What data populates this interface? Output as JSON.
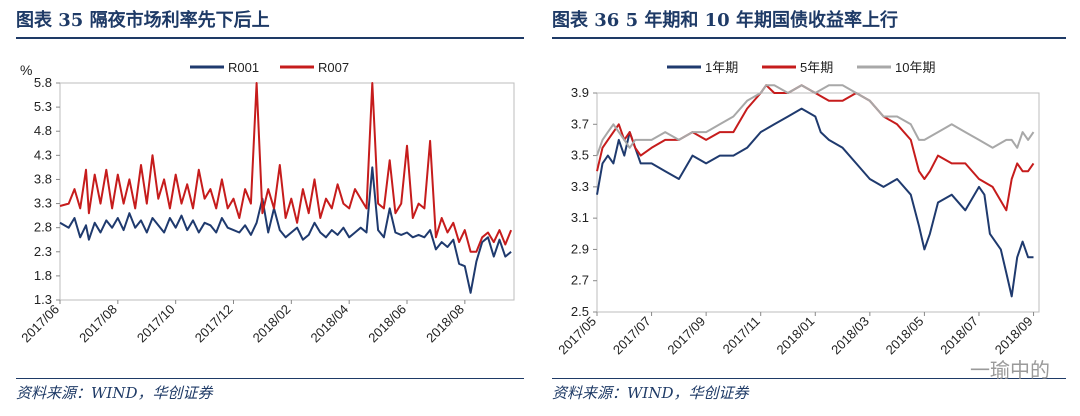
{
  "watermark": "一瑜中的",
  "chart_data": [
    {
      "type": "line",
      "title": "图表 35   隔夜市场利率先下后上",
      "source": "资料来源：WIND，华创证券",
      "ylabel": "%",
      "ylim": [
        1.3,
        5.8
      ],
      "yticks": [
        1.3,
        1.8,
        2.3,
        2.8,
        3.3,
        3.8,
        4.3,
        4.8,
        5.3,
        5.8
      ],
      "x_tick_labels": [
        "2017/06",
        "2017/08",
        "2017/10",
        "2017/12",
        "2018/02",
        "2018/04",
        "2018/06",
        "2018/08"
      ],
      "x_tick_positions": [
        0,
        2,
        4,
        6,
        8,
        10,
        12,
        14
      ],
      "xlim": [
        0,
        15.7
      ],
      "legend": "top-center",
      "series": [
        {
          "name": "R001",
          "color": "#1f3a6e",
          "x": [
            0,
            0.3,
            0.5,
            0.7,
            0.9,
            1.0,
            1.2,
            1.4,
            1.6,
            1.8,
            2.0,
            2.2,
            2.4,
            2.6,
            2.8,
            3.0,
            3.2,
            3.4,
            3.6,
            3.8,
            4.0,
            4.2,
            4.4,
            4.6,
            4.8,
            5.0,
            5.2,
            5.4,
            5.6,
            5.8,
            6.0,
            6.2,
            6.4,
            6.6,
            6.8,
            7.0,
            7.2,
            7.4,
            7.6,
            7.8,
            8.0,
            8.2,
            8.4,
            8.6,
            8.8,
            9.0,
            9.2,
            9.4,
            9.6,
            9.8,
            10.0,
            10.2,
            10.4,
            10.6,
            10.8,
            11.0,
            11.2,
            11.4,
            11.6,
            11.8,
            12.0,
            12.2,
            12.4,
            12.6,
            12.8,
            13.0,
            13.2,
            13.4,
            13.6,
            13.8,
            14.0,
            14.2,
            14.4,
            14.6,
            14.8,
            15.0,
            15.2,
            15.4,
            15.6
          ],
          "y": [
            2.9,
            2.8,
            3.0,
            2.6,
            2.85,
            2.55,
            2.9,
            2.7,
            2.95,
            2.8,
            3.0,
            2.75,
            3.1,
            2.8,
            2.95,
            2.7,
            3.0,
            2.85,
            2.7,
            3.0,
            2.8,
            3.05,
            2.75,
            2.95,
            2.7,
            2.9,
            2.85,
            2.7,
            3.0,
            2.8,
            2.75,
            2.7,
            2.85,
            2.65,
            2.9,
            3.4,
            2.7,
            3.2,
            2.75,
            2.6,
            2.7,
            2.8,
            2.55,
            2.65,
            2.9,
            2.7,
            2.6,
            2.75,
            2.65,
            2.8,
            2.6,
            2.7,
            2.8,
            2.7,
            4.05,
            2.75,
            2.6,
            3.2,
            2.7,
            2.65,
            2.7,
            2.6,
            2.65,
            2.6,
            2.75,
            2.35,
            2.5,
            2.4,
            2.55,
            2.05,
            2.0,
            1.45,
            2.1,
            2.5,
            2.6,
            2.2,
            2.55,
            2.2,
            2.3
          ]
        },
        {
          "name": "R007",
          "color": "#c61c1c",
          "x": [
            0,
            0.3,
            0.5,
            0.7,
            0.9,
            1.0,
            1.2,
            1.4,
            1.6,
            1.8,
            2.0,
            2.2,
            2.4,
            2.6,
            2.8,
            3.0,
            3.2,
            3.4,
            3.6,
            3.8,
            4.0,
            4.2,
            4.4,
            4.6,
            4.8,
            5.0,
            5.2,
            5.4,
            5.6,
            5.8,
            6.0,
            6.2,
            6.4,
            6.6,
            6.8,
            7.0,
            7.2,
            7.4,
            7.6,
            7.8,
            8.0,
            8.2,
            8.4,
            8.6,
            8.8,
            9.0,
            9.2,
            9.4,
            9.6,
            9.8,
            10.0,
            10.2,
            10.4,
            10.6,
            10.8,
            11.0,
            11.2,
            11.4,
            11.6,
            11.8,
            12.0,
            12.2,
            12.4,
            12.6,
            12.8,
            13.0,
            13.2,
            13.4,
            13.6,
            13.8,
            14.0,
            14.2,
            14.4,
            14.6,
            14.8,
            15.0,
            15.2,
            15.4,
            15.6
          ],
          "y": [
            3.25,
            3.3,
            3.6,
            3.2,
            4.0,
            3.1,
            3.9,
            3.3,
            4.0,
            3.2,
            3.9,
            3.3,
            3.8,
            3.2,
            4.1,
            3.3,
            4.3,
            3.4,
            3.8,
            3.2,
            3.9,
            3.3,
            3.7,
            3.2,
            4.0,
            3.4,
            3.6,
            3.2,
            3.8,
            3.2,
            3.4,
            3.0,
            3.6,
            3.3,
            5.8,
            3.1,
            3.6,
            3.2,
            4.1,
            3.0,
            3.4,
            2.9,
            3.6,
            3.1,
            3.8,
            3.0,
            3.4,
            3.2,
            3.7,
            3.3,
            3.2,
            3.6,
            3.4,
            3.2,
            5.8,
            3.3,
            3.2,
            4.2,
            3.1,
            3.3,
            4.5,
            3.0,
            3.3,
            3.2,
            4.6,
            2.6,
            3.0,
            2.7,
            2.9,
            2.5,
            2.75,
            2.3,
            2.3,
            2.6,
            2.7,
            2.5,
            2.75,
            2.45,
            2.75
          ]
        }
      ]
    },
    {
      "type": "line",
      "title": "图表 36   5 年期和 10 年期国债收益率上行",
      "source": "资料来源：WIND，华创证券",
      "ylim": [
        2.5,
        3.9
      ],
      "yticks": [
        2.5,
        2.7,
        2.9,
        3.1,
        3.3,
        3.5,
        3.7,
        3.9
      ],
      "x_tick_labels": [
        "2017/05",
        "2017/07",
        "2017/09",
        "2017/11",
        "2018/01",
        "2018/03",
        "2018/05",
        "2018/07",
        "2018/09"
      ],
      "x_tick_positions": [
        0,
        2,
        4,
        6,
        8,
        10,
        12,
        14,
        16
      ],
      "xlim": [
        0,
        16.2
      ],
      "legend": "top-center",
      "series": [
        {
          "name": "1年期",
          "color": "#1f3a6e",
          "x": [
            0,
            0.2,
            0.4,
            0.6,
            0.8,
            1.0,
            1.2,
            1.4,
            1.6,
            2.0,
            2.5,
            3.0,
            3.5,
            4.0,
            4.5,
            5.0,
            5.5,
            6.0,
            6.5,
            7.0,
            7.5,
            8.0,
            8.2,
            8.5,
            9.0,
            9.5,
            10.0,
            10.5,
            11.0,
            11.5,
            11.8,
            12.0,
            12.2,
            12.5,
            13.0,
            13.5,
            14.0,
            14.2,
            14.4,
            14.6,
            14.8,
            15.0,
            15.2,
            15.4,
            15.6,
            15.8,
            16.0
          ],
          "y": [
            3.25,
            3.45,
            3.5,
            3.45,
            3.6,
            3.5,
            3.65,
            3.55,
            3.45,
            3.45,
            3.4,
            3.35,
            3.5,
            3.45,
            3.5,
            3.5,
            3.55,
            3.65,
            3.7,
            3.75,
            3.8,
            3.75,
            3.65,
            3.6,
            3.55,
            3.45,
            3.35,
            3.3,
            3.35,
            3.25,
            3.05,
            2.9,
            3.0,
            3.2,
            3.25,
            3.15,
            3.3,
            3.25,
            3.0,
            2.95,
            2.9,
            2.75,
            2.6,
            2.85,
            2.95,
            2.85,
            2.85
          ]
        },
        {
          "name": "5年期",
          "color": "#c61c1c",
          "x": [
            0,
            0.2,
            0.4,
            0.6,
            0.8,
            1.0,
            1.2,
            1.4,
            1.6,
            2.0,
            2.5,
            3.0,
            3.5,
            4.0,
            4.5,
            5.0,
            5.5,
            6.0,
            6.2,
            6.5,
            7.0,
            7.5,
            8.0,
            8.5,
            9.0,
            9.5,
            10.0,
            10.5,
            11.0,
            11.5,
            11.8,
            12.0,
            12.2,
            12.5,
            13.0,
            13.5,
            14.0,
            14.5,
            15.0,
            15.2,
            15.4,
            15.6,
            15.8,
            16.0
          ],
          "y": [
            3.4,
            3.55,
            3.6,
            3.65,
            3.7,
            3.6,
            3.65,
            3.55,
            3.5,
            3.55,
            3.6,
            3.6,
            3.65,
            3.6,
            3.65,
            3.65,
            3.8,
            3.9,
            3.95,
            3.9,
            3.9,
            3.95,
            3.9,
            3.85,
            3.85,
            3.9,
            3.85,
            3.75,
            3.7,
            3.6,
            3.4,
            3.35,
            3.4,
            3.5,
            3.45,
            3.45,
            3.35,
            3.3,
            3.15,
            3.35,
            3.45,
            3.4,
            3.4,
            3.45
          ]
        },
        {
          "name": "10年期",
          "color": "#a8a8a8",
          "x": [
            0,
            0.2,
            0.4,
            0.6,
            0.8,
            1.0,
            1.2,
            1.4,
            1.6,
            2.0,
            2.5,
            3.0,
            3.5,
            4.0,
            4.5,
            5.0,
            5.5,
            6.0,
            6.2,
            6.5,
            7.0,
            7.5,
            8.0,
            8.5,
            9.0,
            9.5,
            10.0,
            10.5,
            11.0,
            11.5,
            11.8,
            12.0,
            12.5,
            13.0,
            13.5,
            14.0,
            14.5,
            15.0,
            15.2,
            15.4,
            15.6,
            15.8,
            16.0
          ],
          "y": [
            3.5,
            3.6,
            3.65,
            3.7,
            3.65,
            3.6,
            3.55,
            3.6,
            3.6,
            3.6,
            3.65,
            3.6,
            3.65,
            3.65,
            3.7,
            3.75,
            3.85,
            3.9,
            3.95,
            3.95,
            3.9,
            3.95,
            3.9,
            3.95,
            3.95,
            3.9,
            3.85,
            3.75,
            3.75,
            3.7,
            3.6,
            3.6,
            3.65,
            3.7,
            3.65,
            3.6,
            3.55,
            3.6,
            3.6,
            3.55,
            3.65,
            3.6,
            3.65
          ]
        }
      ]
    }
  ]
}
